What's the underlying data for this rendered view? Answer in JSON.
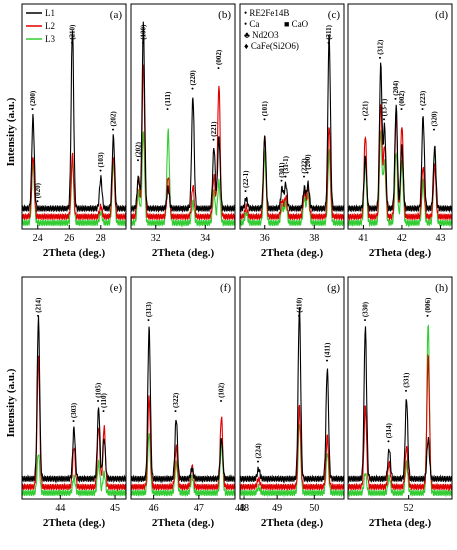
{
  "ylabel": "Intensity (a.u.)",
  "legend": [
    {
      "name": "L1",
      "color": "#000000"
    },
    {
      "name": "L2",
      "color": "#e00000"
    },
    {
      "name": "L3",
      "color": "#33cc33"
    }
  ],
  "phase_legend": [
    {
      "marker": "•",
      "text": "RE2Fe14B"
    },
    {
      "marker": "•",
      "text": "Ca"
    },
    {
      "marker": "■",
      "text": "CaO"
    },
    {
      "marker": "♣",
      "text": "Nd2O3"
    },
    {
      "marker": "♦",
      "text": "CaFe(Si2O6)"
    }
  ],
  "chart_data": [
    {
      "type": "line",
      "panel": "(a)",
      "xlabel": "2Theta (deg.)",
      "xlim": [
        23,
        29.6
      ],
      "ticks": [
        24,
        26,
        28
      ],
      "peaks": [
        {
          "x": 23.7,
          "label": "(200)",
          "h": [
            0.45,
            0.3,
            0.3
          ]
        },
        {
          "x": 24.0,
          "label": "(020)",
          "h": [
            0,
            0,
            0
          ]
        },
        {
          "x": 26.2,
          "label": "(210)",
          "h": [
            0.88,
            0.3,
            0.3
          ]
        },
        {
          "x": 28.0,
          "label": "(103)",
          "h": [
            0.15,
            0.05,
            0.05
          ]
        },
        {
          "x": 28.8,
          "label": "(202)",
          "h": [
            0.35,
            0.3,
            0.3
          ]
        }
      ]
    },
    {
      "type": "line",
      "panel": "(b)",
      "xlabel": "2Theta (deg.)",
      "xlim": [
        31,
        35.2
      ],
      "ticks": [
        32,
        34
      ],
      "peaks": [
        {
          "x": 31.3,
          "label": "(202)",
          "h": [
            0.15,
            0.2,
            0.15
          ]
        },
        {
          "x": 31.5,
          "label": "(100)",
          "h": [
            0.9,
            0.75,
            0.45
          ]
        },
        {
          "x": 32.5,
          "label": "(111)",
          "h": [
            0.1,
            0.2,
            0.45
          ]
        },
        {
          "x": 33.5,
          "label": "(220)",
          "h": [
            0.55,
            0.15,
            0.1
          ]
        },
        {
          "x": 34.35,
          "label": "(221)",
          "h": [
            0.3,
            0.2,
            0.15
          ]
        },
        {
          "x": 34.55,
          "label": "(002)",
          "h": [
            0.35,
            0.65,
            0.2
          ]
        }
      ]
    },
    {
      "type": "line",
      "panel": "(c)",
      "xlabel": "2Theta (deg.)",
      "xlim": [
        35,
        39.2
      ],
      "ticks": [
        36,
        38
      ],
      "peaks": [
        {
          "x": 35.25,
          "label": "(22-1)",
          "h": [
            0.05,
            0.05,
            0.05
          ]
        },
        {
          "x": 36.0,
          "label": "(101)",
          "h": [
            0.35,
            0.4,
            0.35
          ]
        },
        {
          "x": 36.7,
          "label": "(301)",
          "h": [
            0.1,
            0.08,
            0.08
          ]
        },
        {
          "x": 36.85,
          "label": "(31-1)",
          "h": [
            0.12,
            0.1,
            0.1
          ]
        },
        {
          "x": 37.6,
          "label": "(222)",
          "h": [
            0.1,
            0.12,
            0.12
          ]
        },
        {
          "x": 37.75,
          "label": "(200)",
          "h": [
            0.12,
            0.14,
            0.14
          ]
        },
        {
          "x": 38.6,
          "label": "(311)",
          "h": [
            0.85,
            0.45,
            0.35
          ]
        }
      ]
    },
    {
      "type": "line",
      "panel": "(d)",
      "xlabel": "2Theta (deg.)",
      "xlim": [
        40.6,
        43.3
      ],
      "ticks": [
        41,
        42,
        43
      ],
      "peaks": [
        {
          "x": 41.05,
          "label": "(221)",
          "h": [
            0.25,
            0.4,
            0.3
          ]
        },
        {
          "x": 41.45,
          "label": "(312)",
          "h": [
            0.7,
            0.55,
            0.45
          ]
        },
        {
          "x": 41.55,
          "label": "(13-1)",
          "h": [
            0.4,
            0.35,
            0.3
          ]
        },
        {
          "x": 41.85,
          "label": "(204)",
          "h": [
            0.5,
            0.5,
            0.35
          ]
        },
        {
          "x": 42.0,
          "label": "(002)",
          "h": [
            0.3,
            0.45,
            0.3
          ]
        },
        {
          "x": 42.55,
          "label": "(223)",
          "h": [
            0.45,
            0.25,
            0.2
          ]
        },
        {
          "x": 42.85,
          "label": "(320)",
          "h": [
            0.3,
            0.25,
            0.35
          ]
        }
      ]
    },
    {
      "type": "line",
      "panel": "(e)",
      "xlabel": "2Theta (deg.)",
      "xlim": [
        43.3,
        45.2
      ],
      "ticks": [
        44,
        45
      ],
      "peaks": [
        {
          "x": 43.6,
          "label": "(214)",
          "h": [
            0.8,
            0.65,
            0.2
          ]
        },
        {
          "x": 44.25,
          "label": "(303)",
          "h": [
            0.25,
            0.2,
            0.08
          ]
        },
        {
          "x": 44.7,
          "label": "(105)",
          "h": [
            0.35,
            0.3,
            0.15
          ]
        },
        {
          "x": 44.8,
          "label": "(110)",
          "h": [
            0.2,
            0.3,
            0.1
          ]
        }
      ]
    },
    {
      "type": "line",
      "panel": "(f)",
      "xlabel": "2Theta (deg.)",
      "xlim": [
        45.5,
        47.8
      ],
      "ticks": [
        46,
        47,
        48
      ],
      "peaks": [
        {
          "x": 45.9,
          "label": "(313)",
          "h": [
            0.75,
            0.45,
            0.3
          ]
        },
        {
          "x": 46.5,
          "label": "(322)",
          "h": [
            0.3,
            0.2,
            0.15
          ]
        },
        {
          "x": 46.85,
          "label": "",
          "h": [
            0.05,
            0.1,
            0.08
          ]
        },
        {
          "x": 47.5,
          "label": "(102)",
          "h": [
            0.2,
            0.35,
            0.25
          ]
        }
      ]
    },
    {
      "type": "line",
      "panel": "(g)",
      "xlabel": "2Theta (deg.)",
      "xlim": [
        48,
        50.8
      ],
      "ticks": [
        48,
        49,
        50
      ],
      "peaks": [
        {
          "x": 48.5,
          "label": "(224)",
          "h": [
            0.05,
            0.04,
            0.03
          ]
        },
        {
          "x": 49.6,
          "label": "(410)",
          "h": [
            0.85,
            0.4,
            0.35
          ]
        },
        {
          "x": 50.35,
          "label": "(411)",
          "h": [
            0.55,
            0.25,
            0.2
          ]
        }
      ]
    },
    {
      "type": "line",
      "panel": "(h)",
      "xlabel": "2Theta (deg.)",
      "xlim": [
        50.6,
        53
      ],
      "ticks": [
        52
      ],
      "peaks": [
        {
          "x": 51.0,
          "label": "(330)",
          "h": [
            0.75,
            0.4,
            0.1
          ]
        },
        {
          "x": 51.55,
          "label": "(314)",
          "h": [
            0.15,
            0.12,
            0.08
          ]
        },
        {
          "x": 51.95,
          "label": "(331)",
          "h": [
            0.4,
            0.2,
            0.15
          ]
        },
        {
          "x": 52.45,
          "label": "(006)",
          "h": [
            0.2,
            0.65,
            0.85
          ]
        }
      ]
    }
  ]
}
